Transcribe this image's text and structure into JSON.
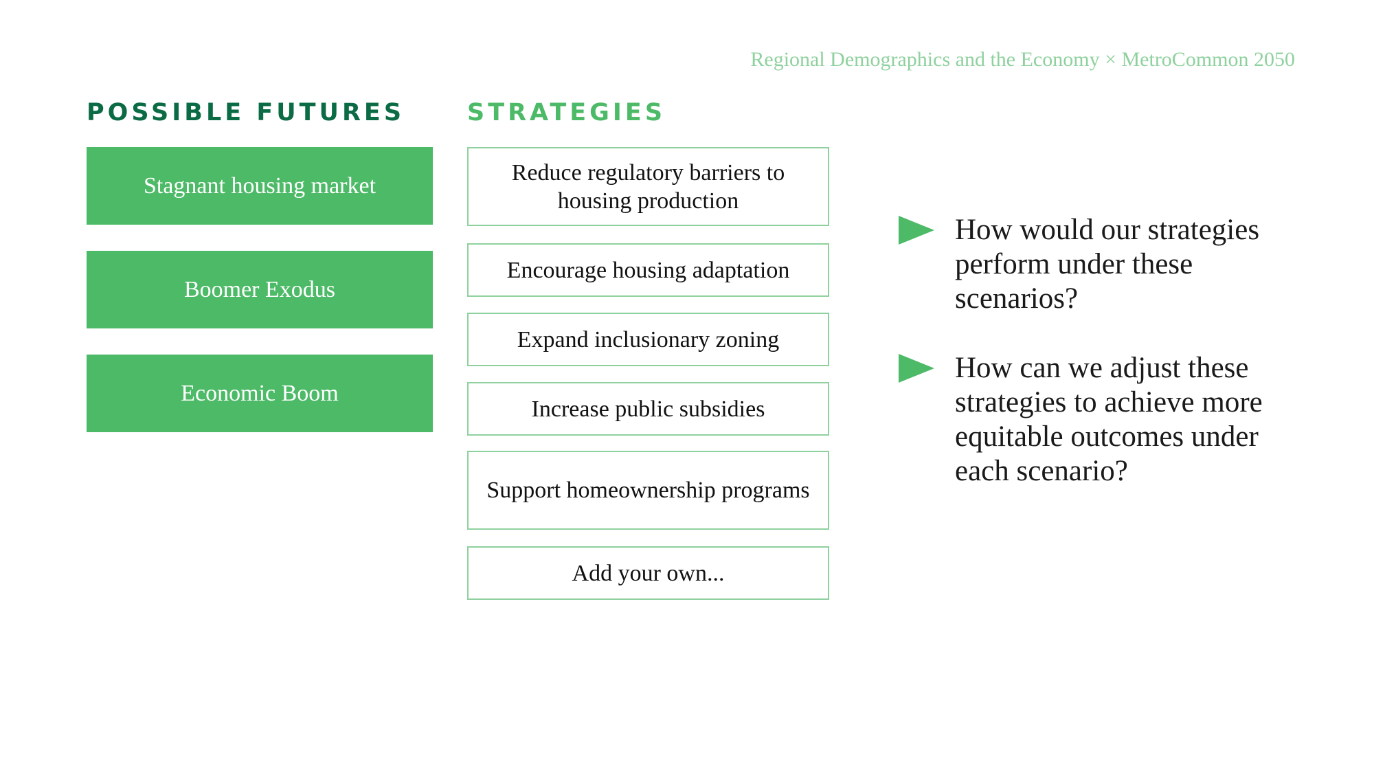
{
  "header": {
    "title": "Regional Demographics and the Economy × MetroCommon 2050"
  },
  "futures": {
    "heading": "POSSIBLE FUTURES",
    "items": [
      "Stagnant housing market",
      "Boomer Exodus",
      "Economic Boom"
    ]
  },
  "strategies": {
    "heading": "STRATEGIES",
    "items": [
      "Reduce regulatory barriers to housing production",
      "Encourage housing adaptation",
      "Expand inclusionary zoning",
      "Increase public subsidies",
      "Support homeownership programs",
      "Add your own..."
    ]
  },
  "questions": [
    "How would our strategies perform under these scenarios?",
    "How can we adjust these strategies to achieve more equitable outcomes under each scenario?"
  ],
  "colors": {
    "accent_green": "#4dba67",
    "dark_green": "#0b6b45",
    "light_green": "#8fd19e"
  }
}
